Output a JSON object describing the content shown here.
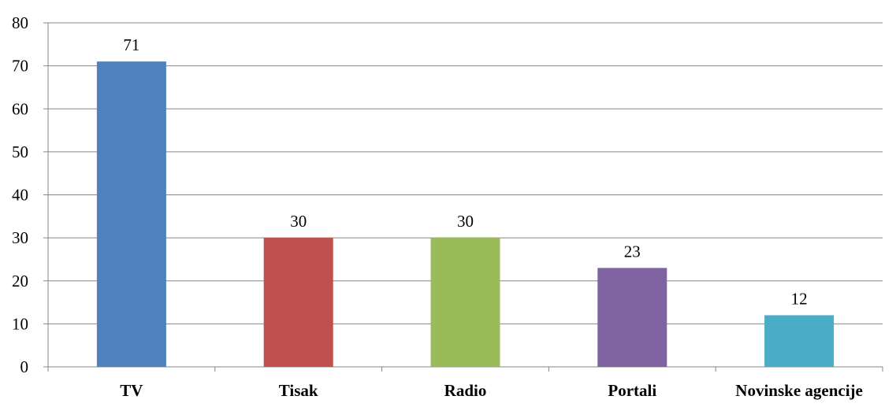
{
  "chart_data": {
    "type": "bar",
    "title": "",
    "xlabel": "",
    "ylabel": "",
    "categories": [
      "TV",
      "Tisak",
      "Radio",
      "Portali",
      "Novinske agencije"
    ],
    "values": [
      71,
      30,
      30,
      23,
      12
    ],
    "data_labels": [
      "71",
      "30",
      "30",
      "23",
      "12"
    ],
    "colors": [
      "#4f81bd",
      "#c0504d",
      "#9bbb59",
      "#8064a2",
      "#4bacc6"
    ],
    "ylim": [
      0,
      80
    ],
    "yticks": [
      0,
      10,
      20,
      30,
      40,
      50,
      60,
      70,
      80
    ],
    "ytick_labels": [
      "0",
      "10",
      "20",
      "30",
      "40",
      "50",
      "60",
      "70",
      "80"
    ],
    "grid": true,
    "legend": "none"
  }
}
